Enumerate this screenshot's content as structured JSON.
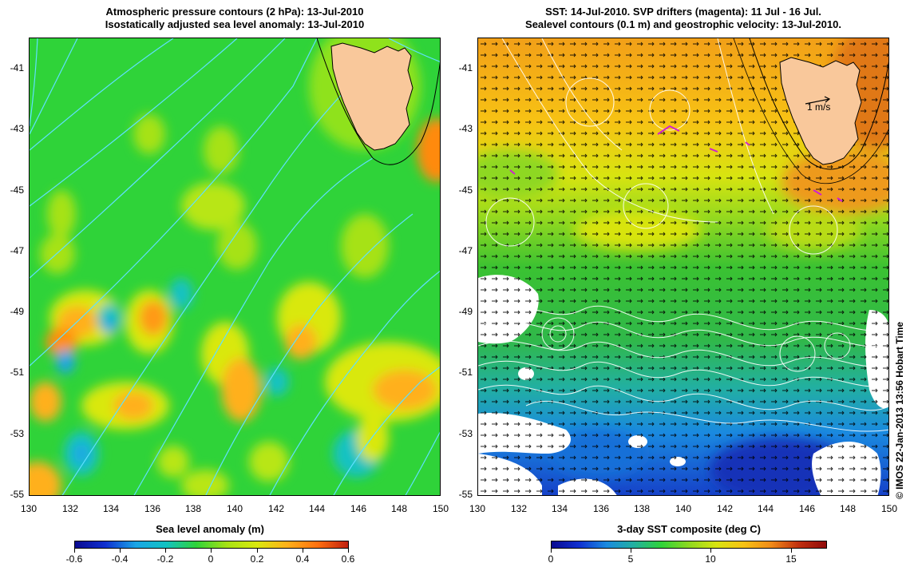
{
  "left_panel": {
    "title_line1": "Atmospheric pressure contours (2 hPa): 13-Jul-2010",
    "title_line2": "Isostatically adjusted sea level anomaly: 13-Jul-2010",
    "colorbar_title": "Sea level anomaly (m)",
    "colorbar_ticks": [
      "-0.6",
      "-0.4",
      "-0.2",
      "0",
      "0.2",
      "0.4",
      "0.6"
    ]
  },
  "right_panel": {
    "title_line1": "SST: 14-Jul-2010. SVP drifters (magenta): 11 Jul - 16 Jul.",
    "title_line2": "Sealevel contours (0.1 m) and geostrophic velocity: 13-Jul-2010.",
    "colorbar_title": "3-day SST composite (deg C)",
    "colorbar_ticks": [
      "0",
      "5",
      "10",
      "15"
    ],
    "scale_arrow_label": "1 m/s"
  },
  "axes": {
    "lat_ticks": [
      "-41",
      "-43",
      "-45",
      "-47",
      "-49",
      "-51",
      "-53",
      "-55"
    ],
    "lon_ticks": [
      "130",
      "132",
      "134",
      "136",
      "138",
      "140",
      "142",
      "144",
      "146",
      "148",
      "150"
    ]
  },
  "credit": "© IMOS 22-Jan-2013 13:56 Hobart Time",
  "colors": {
    "land": "#f9c89b",
    "sla_background": "#2fd339",
    "sst_warm": "#f0a020",
    "sst_cold": "#1a7ad8",
    "contour_cyan": "#60e0ff",
    "drifter_magenta": "#d020d0"
  }
}
